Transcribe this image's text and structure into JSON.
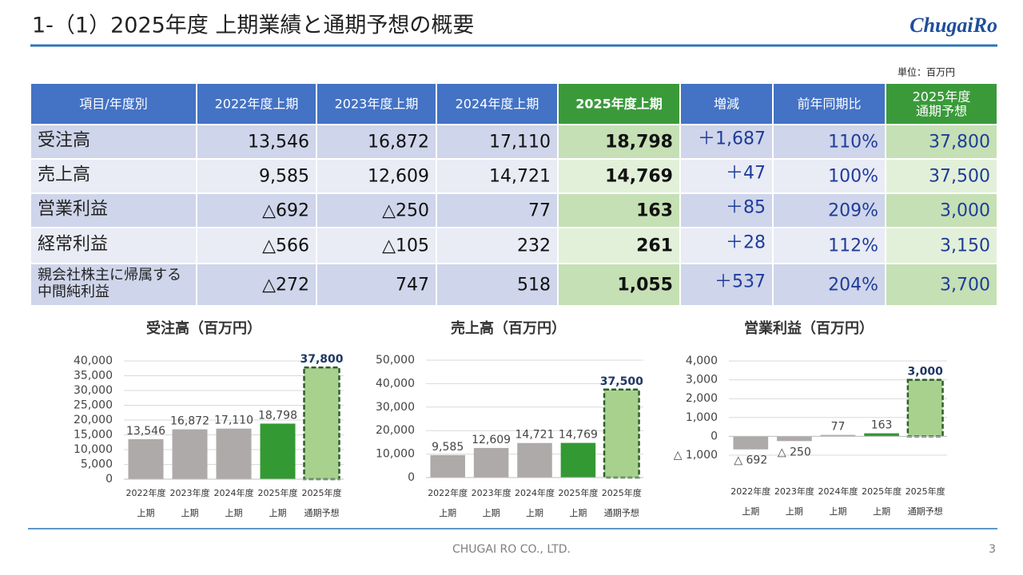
{
  "header": {
    "title": "1-（1）2025年度 上期業績と通期予想の概要",
    "logo": "ChugaiRo"
  },
  "unit": "単位：百万円",
  "table": {
    "columns": [
      "項目/年度別",
      "2022年度上期",
      "2023年度上期",
      "2024年度上期",
      "2025年度上期",
      "増減",
      "前年同期比",
      [
        "2025年度",
        "通期予想"
      ]
    ],
    "rows": [
      [
        "受注高",
        "13,546",
        "16,872",
        "17,110",
        "18,798",
        "＋1,687",
        "110%",
        "37,800"
      ],
      [
        "売上高",
        "9,585",
        "12,609",
        "14,721",
        "14,769",
        "＋47",
        "100%",
        "37,500"
      ],
      [
        "営業利益",
        "△692",
        "△250",
        "77",
        "163",
        "＋85",
        "209%",
        "3,000"
      ],
      [
        "経常利益",
        "△566",
        "△105",
        "232",
        "261",
        "＋28",
        "112%",
        "3,150"
      ],
      [
        [
          "親会社株主に帰属する",
          "中間純利益"
        ],
        "△272",
        "747",
        "518",
        "1,055",
        "＋537",
        "204%",
        "3,700"
      ]
    ]
  },
  "chart_data": [
    {
      "type": "bar",
      "title": "受注高（百万円）",
      "categories": [
        [
          "2022年度",
          "上期"
        ],
        [
          "2023年度",
          "上期"
        ],
        [
          "2024年度",
          "上期"
        ],
        [
          "2025年度",
          "上期"
        ],
        [
          "2025年度",
          "通期予想"
        ]
      ],
      "values": [
        13546,
        16872,
        17110,
        18798,
        37800
      ],
      "value_labels": [
        "13,546",
        "16,872",
        "17,110",
        "18,798",
        "37,800"
      ],
      "colors": [
        "#aeaaaa",
        "#aeaaaa",
        "#aeaaaa",
        "#339933",
        "#a9d18e"
      ],
      "ylim": [
        0,
        40000
      ],
      "yticks": [
        0,
        {
          "value": 5000,
          "label": "5,000"
        },
        {
          "value": 10000,
          "label": "10,000"
        },
        {
          "value": 15000,
          "label": "15,000"
        },
        {
          "value": 20000,
          "label": "20,000"
        },
        {
          "value": 25000,
          "label": "25,000"
        },
        {
          "value": 30000,
          "label": "30,000"
        },
        {
          "value": 35000,
          "label": "35,000"
        },
        {
          "value": 40000,
          "label": "40,000"
        }
      ],
      "grid": true
    },
    {
      "type": "bar",
      "title": "売上高（百万円）",
      "categories": [
        [
          "2022年度",
          "上期"
        ],
        [
          "2023年度",
          "上期"
        ],
        [
          "2024年度",
          "上期"
        ],
        [
          "2025年度",
          "上期"
        ],
        [
          "2025年度",
          "通期予想"
        ]
      ],
      "values": [
        9585,
        12609,
        14721,
        14769,
        37500
      ],
      "value_labels": [
        "9,585",
        "12,609",
        "14,721",
        "14,769",
        "37,500"
      ],
      "colors": [
        "#aeaaaa",
        "#aeaaaa",
        "#aeaaaa",
        "#339933",
        "#a9d18e"
      ],
      "ylim": [
        0,
        50000
      ],
      "yticks": [
        0,
        {
          "value": 10000,
          "label": "10,000"
        },
        {
          "value": 20000,
          "label": "20,000"
        },
        {
          "value": 30000,
          "label": "30,000"
        },
        {
          "value": 40000,
          "label": "40,000"
        },
        {
          "value": 50000,
          "label": "50,000"
        }
      ],
      "grid": true
    },
    {
      "type": "bar",
      "title": "営業利益（百万円）",
      "categories": [
        [
          "2022年度",
          "上期"
        ],
        [
          "2023年度",
          "上期"
        ],
        [
          "2024年度",
          "上期"
        ],
        [
          "2025年度",
          "上期"
        ],
        [
          "2025年度",
          "通期予想"
        ]
      ],
      "values": [
        -692,
        -250,
        77,
        163,
        3000
      ],
      "value_labels": [
        "△ 692",
        "△ 250",
        "77",
        "163",
        "3,000"
      ],
      "colors": [
        "#aeaaaa",
        "#aeaaaa",
        "#aeaaaa",
        "#339933",
        "#a9d18e"
      ],
      "ylim": [
        -1000,
        4000
      ],
      "yticks": [
        {
          "value": -1000,
          "label": "△ 1,000"
        },
        0,
        {
          "value": 1000,
          "label": "1,000"
        },
        {
          "value": 2000,
          "label": "2,000"
        },
        {
          "value": 3000,
          "label": "3,000"
        },
        {
          "value": 4000,
          "label": "4,000"
        }
      ],
      "grid": true
    }
  ],
  "footer": {
    "company": "CHUGAI RO CO., LTD.",
    "page": "3"
  }
}
